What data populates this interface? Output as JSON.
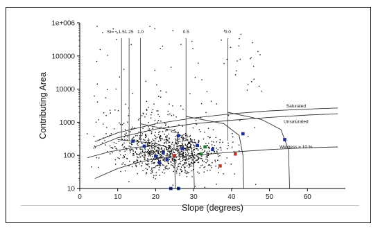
{
  "chart_data": {
    "type": "scatter",
    "xlabel": "Slope (degrees)",
    "ylabel": "Contributing Area",
    "xlim": [
      0,
      70
    ],
    "ylim": [
      10,
      1000000
    ],
    "y_scale": "log",
    "grid": false,
    "x_ticks": [
      {
        "value": 0,
        "label": "0"
      },
      {
        "value": 10,
        "label": "10"
      },
      {
        "value": 20,
        "label": "20"
      },
      {
        "value": 30,
        "label": "30"
      },
      {
        "value": 40,
        "label": "40"
      },
      {
        "value": 50,
        "label": "50"
      },
      {
        "value": 60,
        "label": "60"
      }
    ],
    "y_ticks": [
      {
        "value": 10,
        "label": "10"
      },
      {
        "value": 100,
        "label": "100"
      },
      {
        "value": 1000,
        "label": "1000"
      },
      {
        "value": 10000,
        "label": "10000"
      },
      {
        "value": 100000,
        "label": "100000"
      },
      {
        "value": 1000000,
        "label": "1e+006"
      }
    ],
    "si_label": "SI=",
    "si_lines": [
      {
        "label": "1.5",
        "slope": 11
      },
      {
        "label": "1.25",
        "slope": 13
      },
      {
        "label": "1.0",
        "slope": 16
      },
      {
        "label": "0.5",
        "slope": 28
      },
      {
        "label": "0.0",
        "slope": 39
      }
    ],
    "curve_labels": [
      {
        "label": "Saturated",
        "x": 57,
        "y": 2800
      },
      {
        "label": "Unsaturated",
        "x": 57,
        "y": 950
      },
      {
        "label": "Wetness = 10 %",
        "x": 57,
        "y": 165
      }
    ],
    "curves": {
      "saturated": [
        [
          4,
          260
        ],
        [
          10,
          480
        ],
        [
          20,
          900
        ],
        [
          30,
          1350
        ],
        [
          40,
          1800
        ],
        [
          50,
          2200
        ],
        [
          60,
          2500
        ],
        [
          68,
          2700
        ]
      ],
      "unsaturated": [
        [
          4,
          180
        ],
        [
          10,
          340
        ],
        [
          20,
          620
        ],
        [
          30,
          900
        ],
        [
          40,
          1150
        ],
        [
          50,
          1400
        ],
        [
          60,
          1650
        ],
        [
          68,
          1800
        ]
      ],
      "wetness": [
        [
          4,
          20
        ],
        [
          10,
          40
        ],
        [
          15,
          60
        ],
        [
          20,
          80
        ],
        [
          30,
          100
        ],
        [
          40,
          125
        ],
        [
          50,
          150
        ],
        [
          60,
          170
        ],
        [
          68,
          180
        ]
      ],
      "lower_envelope": [
        [
          2,
          85
        ],
        [
          8,
          130
        ],
        [
          14,
          170
        ],
        [
          18,
          190
        ],
        [
          22,
          200
        ]
      ]
    },
    "failure_curves": [
      [
        [
          10,
          300
        ],
        [
          20,
          230
        ],
        [
          24,
          160
        ],
        [
          25,
          60
        ],
        [
          25.2,
          10
        ]
      ],
      [
        [
          16,
          900
        ],
        [
          25,
          550
        ],
        [
          29,
          250
        ],
        [
          30,
          80
        ],
        [
          30.2,
          10
        ]
      ],
      [
        [
          28,
          1500
        ],
        [
          38,
          900
        ],
        [
          42,
          400
        ],
        [
          43,
          100
        ],
        [
          43.2,
          10
        ]
      ],
      [
        [
          39,
          2000
        ],
        [
          48,
          1200
        ],
        [
          53,
          600
        ],
        [
          55,
          150
        ],
        [
          55.3,
          10
        ]
      ]
    ],
    "highlight_points": [
      {
        "x": 14,
        "y": 270,
        "color": "#1a2f8f"
      },
      {
        "x": 17,
        "y": 190,
        "color": "#1a2f8f"
      },
      {
        "x": 20,
        "y": 95,
        "color": "#1a2f8f"
      },
      {
        "x": 21,
        "y": 60,
        "color": "#1a2f8f"
      },
      {
        "x": 22,
        "y": 120,
        "color": "#1a2f8f"
      },
      {
        "x": 23,
        "y": 75,
        "color": "#1a2f8f"
      },
      {
        "x": 24,
        "y": 10,
        "color": "#1a2f8f"
      },
      {
        "x": 26,
        "y": 10,
        "color": "#1a2f8f"
      },
      {
        "x": 26,
        "y": 390,
        "color": "#1a2f8f"
      },
      {
        "x": 27,
        "y": 160,
        "color": "#1a2f8f"
      },
      {
        "x": 31,
        "y": 200,
        "color": "#1a2f8f"
      },
      {
        "x": 35,
        "y": 150,
        "color": "#1a2f8f"
      },
      {
        "x": 43,
        "y": 450,
        "color": "#1a2f8f"
      },
      {
        "x": 54,
        "y": 300,
        "color": "#1a2f8f"
      },
      {
        "x": 33,
        "y": 180,
        "color": "#1f7a2e"
      },
      {
        "x": 32,
        "y": 110,
        "color": "#1f7a2e"
      },
      {
        "x": 25,
        "y": 100,
        "color": "#c0392b"
      },
      {
        "x": 37,
        "y": 48,
        "color": "#c0392b"
      },
      {
        "x": 41,
        "y": 110,
        "color": "#c0392b"
      }
    ]
  }
}
